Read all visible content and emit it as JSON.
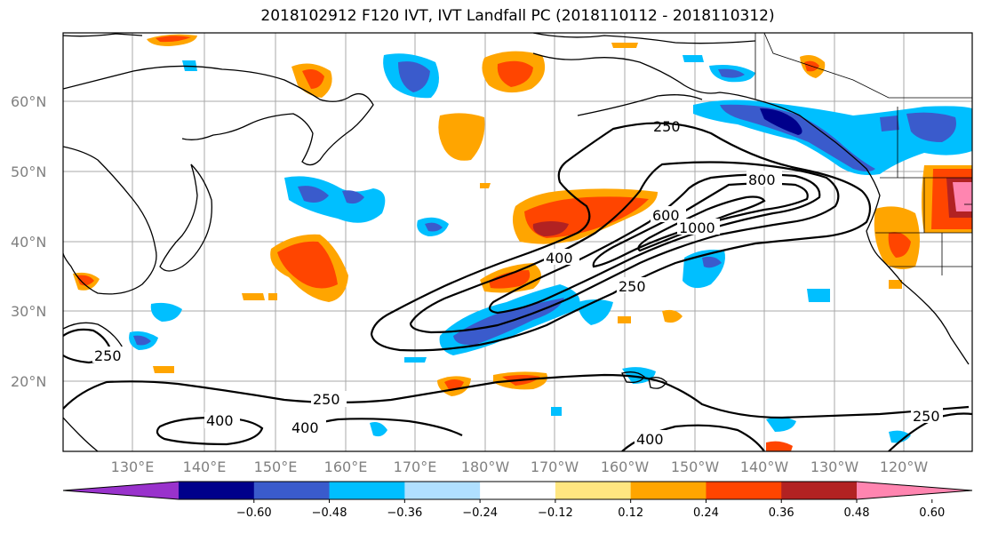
{
  "title": "2018102912 F120 IVT, IVT Landfall PC (2018110112 - 2018110312)",
  "lat_labels": [
    "60°N",
    "50°N",
    "40°N",
    "30°N",
    "20°N"
  ],
  "lon_labels": [
    "130°E",
    "140°E",
    "150°E",
    "160°E",
    "170°E",
    "180°W",
    "170°W",
    "160°W",
    "150°W",
    "140°W",
    "130°W",
    "120°W"
  ],
  "colorbar": {
    "ticks": [
      "−0.60",
      "−0.48",
      "−0.36",
      "−0.24",
      "−0.12",
      "0.12",
      "0.24",
      "0.36",
      "0.48",
      "0.60"
    ],
    "colors": [
      "#9932cc",
      "#00008b",
      "#3a5bcc",
      "#00bfff",
      "#b0e0ff",
      "#ffffff",
      "#ffe680",
      "#ffa500",
      "#ff4500",
      "#b22222",
      "#ff85b0"
    ]
  },
  "contour_labels": {
    "c250_a": "250",
    "c250_b": "250",
    "c250_c": "250",
    "c250_d": "250",
    "c250_e": "250",
    "c400_a": "400",
    "c400_b": "400",
    "c400_c": "400",
    "c400_d": "400",
    "c600": "600",
    "c800": "800",
    "c1000": "1000"
  }
}
